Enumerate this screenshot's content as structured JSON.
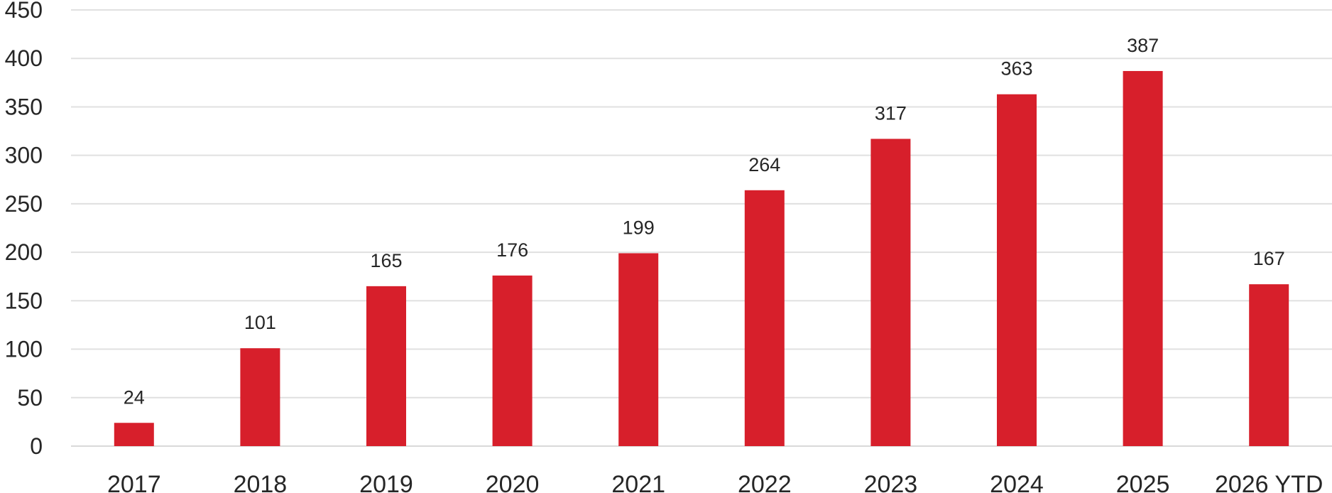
{
  "chart_data": {
    "type": "bar",
    "categories": [
      "2017",
      "2018",
      "2019",
      "2020",
      "2021",
      "2022",
      "2023",
      "2024",
      "2025",
      "2026 YTD"
    ],
    "series": [
      {
        "values": [
          24,
          101,
          165,
          176,
          199,
          264,
          317,
          363,
          387,
          167
        ],
        "color": "#d71f2b"
      }
    ],
    "title": "",
    "xlabel": "",
    "ylabel": "",
    "ylim": [
      0,
      450
    ],
    "yticks": [
      0,
      50,
      100,
      150,
      200,
      250,
      300,
      350,
      400,
      450
    ],
    "grid": true,
    "legend": "none",
    "data_labels": true
  }
}
